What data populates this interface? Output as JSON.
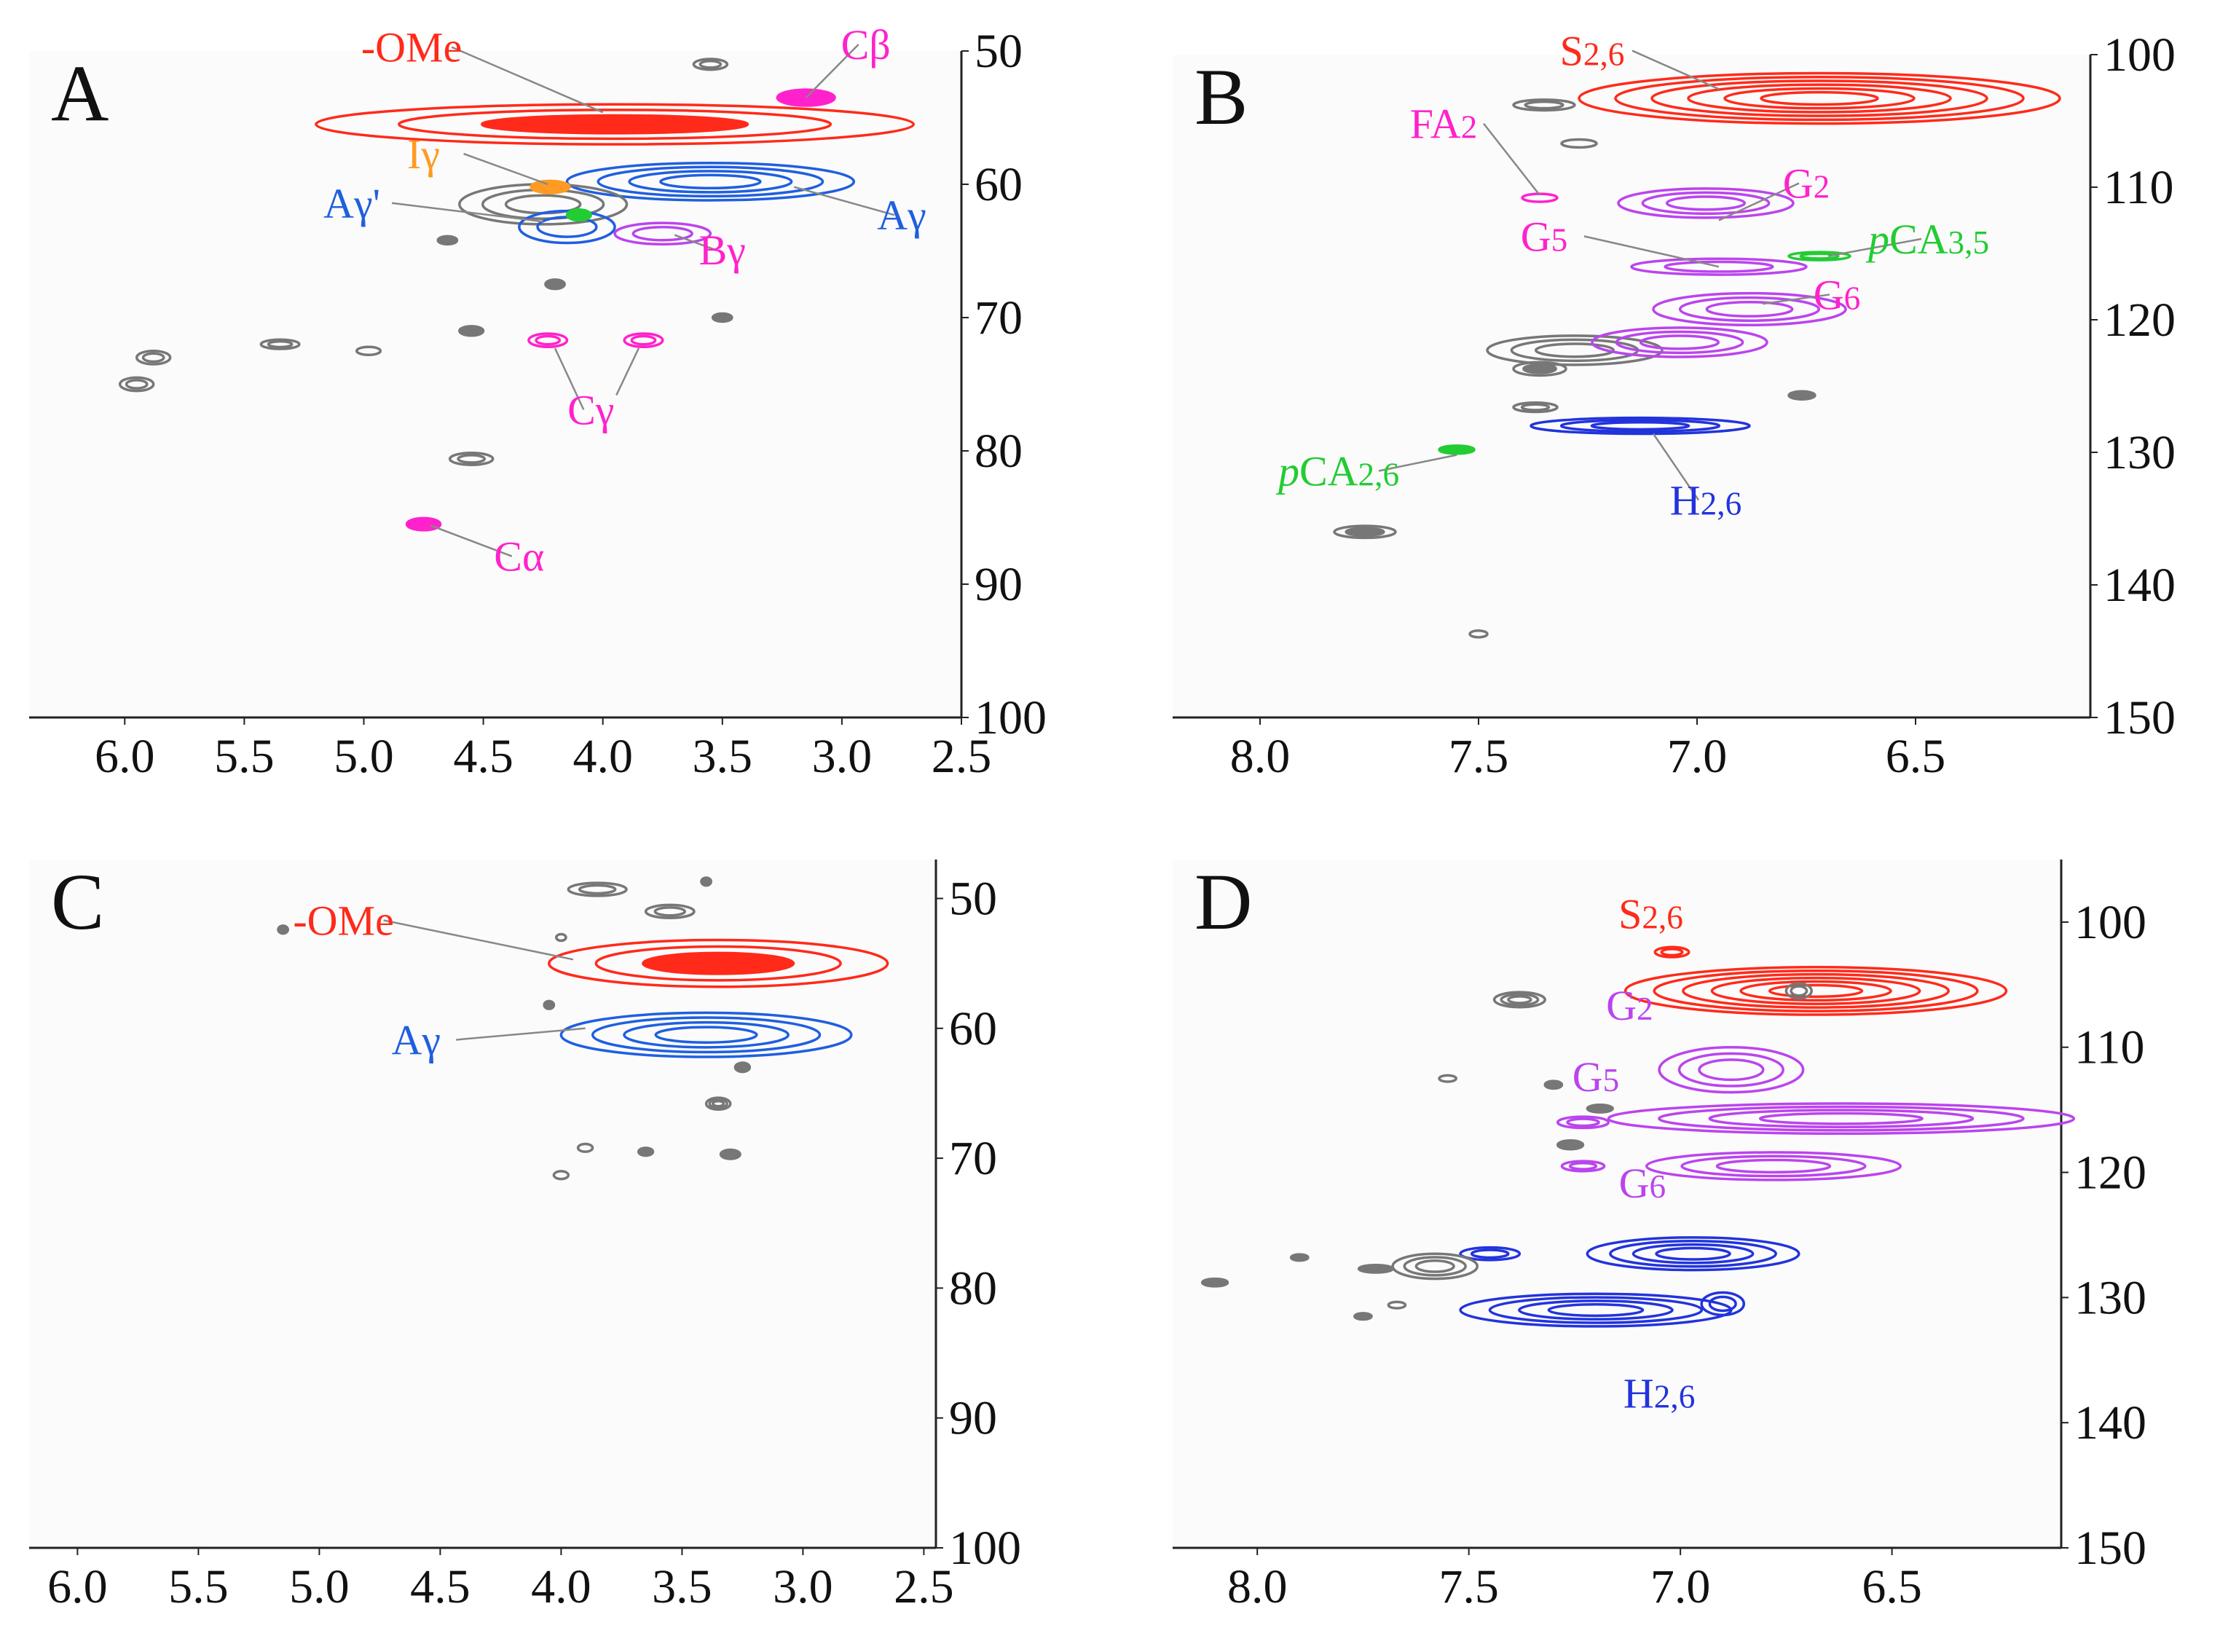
{
  "chart_data": [
    {
      "type": "scatter",
      "panel_label": "A",
      "xlim": [
        6.4,
        2.5
      ],
      "ylim": [
        50,
        100
      ],
      "x_ticks": [
        "6.0",
        "5.5",
        "5.0",
        "4.5",
        "4.0",
        "3.5",
        "3.0",
        "2.5"
      ],
      "y_ticks": [
        "50",
        "60",
        "70",
        "80",
        "90",
        "100"
      ],
      "colors": {
        "red": "#ff2a1a",
        "blue": "#1f5fe0",
        "magenta": "#ff22cc",
        "purple": "#bb44ee",
        "orange": "#ff9a22",
        "green": "#22cc33",
        "gray": "#777777"
      },
      "peaks": [
        {
          "x": 3.95,
          "y": 55.5,
          "rx": 1.25,
          "ry": 1.5,
          "color": "red",
          "rings": 3,
          "fill": true
        },
        {
          "x": 3.15,
          "y": 53.5,
          "rx": 0.12,
          "ry": 0.6,
          "color": "magenta",
          "rings": 1,
          "fill": true
        },
        {
          "x": 3.55,
          "y": 59.8,
          "rx": 0.6,
          "ry": 1.4,
          "color": "blue",
          "rings": 4
        },
        {
          "x": 4.25,
          "y": 61.5,
          "rx": 0.35,
          "ry": 1.5,
          "color": "gray",
          "rings": 3
        },
        {
          "x": 4.22,
          "y": 60.2,
          "rx": 0.08,
          "ry": 0.45,
          "color": "orange",
          "rings": 1,
          "fill": true
        },
        {
          "x": 4.15,
          "y": 63.2,
          "rx": 0.2,
          "ry": 1.2,
          "color": "blue",
          "rings": 2
        },
        {
          "x": 3.75,
          "y": 63.7,
          "rx": 0.2,
          "ry": 0.8,
          "color": "purple",
          "rings": 2
        },
        {
          "x": 4.1,
          "y": 62.3,
          "rx": 0.05,
          "ry": 0.4,
          "color": "green",
          "rings": 1,
          "fill": true
        },
        {
          "x": 3.55,
          "y": 51.0,
          "rx": 0.07,
          "ry": 0.4,
          "color": "gray",
          "rings": 2
        },
        {
          "x": 4.65,
          "y": 64.2,
          "rx": 0.04,
          "ry": 0.3,
          "color": "gray",
          "rings": 1,
          "fill": true
        },
        {
          "x": 4.2,
          "y": 67.5,
          "rx": 0.04,
          "ry": 0.35,
          "color": "gray",
          "rings": 1,
          "fill": true
        },
        {
          "x": 4.55,
          "y": 71.0,
          "rx": 0.05,
          "ry": 0.35,
          "color": "gray",
          "rings": 1,
          "fill": true
        },
        {
          "x": 3.5,
          "y": 70.0,
          "rx": 0.04,
          "ry": 0.3,
          "color": "gray",
          "rings": 1,
          "fill": true
        },
        {
          "x": 5.35,
          "y": 72.0,
          "rx": 0.08,
          "ry": 0.35,
          "color": "gray",
          "rings": 2
        },
        {
          "x": 4.98,
          "y": 72.5,
          "rx": 0.05,
          "ry": 0.3,
          "color": "gray",
          "rings": 1
        },
        {
          "x": 5.88,
          "y": 73.0,
          "rx": 0.07,
          "ry": 0.5,
          "color": "gray",
          "rings": 2
        },
        {
          "x": 5.95,
          "y": 75.0,
          "rx": 0.07,
          "ry": 0.5,
          "color": "gray",
          "rings": 2
        },
        {
          "x": 4.23,
          "y": 71.7,
          "rx": 0.08,
          "ry": 0.5,
          "color": "magenta",
          "rings": 2
        },
        {
          "x": 3.83,
          "y": 71.7,
          "rx": 0.08,
          "ry": 0.5,
          "color": "magenta",
          "rings": 2
        },
        {
          "x": 4.55,
          "y": 80.6,
          "rx": 0.09,
          "ry": 0.45,
          "color": "gray",
          "rings": 2
        },
        {
          "x": 4.75,
          "y": 85.5,
          "rx": 0.07,
          "ry": 0.45,
          "color": "magenta",
          "rings": 1,
          "fill": true
        }
      ],
      "labels": [
        {
          "text": "-OMe",
          "color": "red",
          "x": 4.8,
          "y": 50.8,
          "tx": 4.0,
          "ty": 54.6
        },
        {
          "text": "Cβ",
          "color": "magenta",
          "x": 2.9,
          "y": 50.6,
          "tx": 3.15,
          "ty": 53.5
        },
        {
          "text": "Iγ",
          "color": "orange",
          "x": 4.75,
          "y": 58.8,
          "tx": 4.23,
          "ty": 60.0
        },
        {
          "text": "Aγ'",
          "color": "blue",
          "x": 5.05,
          "y": 62.5,
          "tx": 4.25,
          "ty": 62.8
        },
        {
          "text": "Aγ",
          "color": "blue",
          "x": 2.75,
          "y": 63.4,
          "tx": 3.2,
          "ty": 60.2
        },
        {
          "text": "Bγ",
          "color": "magenta",
          "x": 3.5,
          "y": 66.0,
          "tx": 3.7,
          "ty": 63.8
        },
        {
          "text": "Cγ",
          "color": "magenta",
          "x": 4.05,
          "y": 78.0,
          "tx": 4.2,
          "ty": 72.3,
          "tx2": 3.85,
          "ty2": 72.3
        },
        {
          "text": "Cα",
          "color": "magenta",
          "x": 4.35,
          "y": 89.0,
          "tx": 4.72,
          "ty": 85.6
        }
      ]
    },
    {
      "type": "scatter",
      "panel_label": "B",
      "xlim": [
        8.2,
        6.1
      ],
      "ylim": [
        100,
        150
      ],
      "x_ticks": [
        "8.0",
        "7.5",
        "7.0",
        "6.5"
      ],
      "y_ticks": [
        "100",
        "110",
        "120",
        "130",
        "140",
        "150"
      ],
      "colors": {
        "red": "#ff2a1a",
        "blue": "#2233dd",
        "magenta": "#ff22cc",
        "purple": "#bb44ee",
        "green": "#22cc33",
        "gray": "#777777"
      },
      "peaks": [
        {
          "x": 6.72,
          "y": 103.3,
          "rx": 0.55,
          "ry": 1.9,
          "color": "red",
          "rings": 6
        },
        {
          "x": 7.35,
          "y": 103.8,
          "rx": 0.07,
          "ry": 0.4,
          "color": "gray",
          "rings": 2
        },
        {
          "x": 7.27,
          "y": 106.7,
          "rx": 0.04,
          "ry": 0.3,
          "color": "gray",
          "rings": 1
        },
        {
          "x": 7.36,
          "y": 110.8,
          "rx": 0.04,
          "ry": 0.3,
          "color": "magenta",
          "rings": 1
        },
        {
          "x": 6.98,
          "y": 111.2,
          "rx": 0.2,
          "ry": 1.1,
          "color": "purple",
          "rings": 3
        },
        {
          "x": 6.95,
          "y": 116.0,
          "rx": 0.2,
          "ry": 0.6,
          "color": "purple",
          "rings": 2
        },
        {
          "x": 6.72,
          "y": 115.2,
          "rx": 0.07,
          "ry": 0.3,
          "color": "green",
          "rings": 2
        },
        {
          "x": 6.88,
          "y": 119.2,
          "rx": 0.22,
          "ry": 1.2,
          "color": "purple",
          "rings": 3
        },
        {
          "x": 7.28,
          "y": 122.3,
          "rx": 0.2,
          "ry": 1.1,
          "color": "gray",
          "rings": 3
        },
        {
          "x": 7.04,
          "y": 121.7,
          "rx": 0.2,
          "ry": 1.1,
          "color": "purple",
          "rings": 3
        },
        {
          "x": 7.36,
          "y": 123.7,
          "rx": 0.06,
          "ry": 0.5,
          "color": "gray",
          "rings": 2,
          "fill": true
        },
        {
          "x": 6.76,
          "y": 125.7,
          "rx": 0.03,
          "ry": 0.3,
          "color": "gray",
          "rings": 1,
          "fill": true
        },
        {
          "x": 7.37,
          "y": 126.6,
          "rx": 0.05,
          "ry": 0.35,
          "color": "gray",
          "rings": 2
        },
        {
          "x": 7.13,
          "y": 128.0,
          "rx": 0.25,
          "ry": 0.6,
          "color": "blue",
          "rings": 3
        },
        {
          "x": 7.55,
          "y": 129.8,
          "rx": 0.04,
          "ry": 0.3,
          "color": "green",
          "rings": 1,
          "fill": true
        },
        {
          "x": 7.76,
          "y": 136.0,
          "rx": 0.07,
          "ry": 0.45,
          "color": "gray",
          "rings": 2,
          "fill": true
        },
        {
          "x": 7.5,
          "y": 143.7,
          "rx": 0.02,
          "ry": 0.25,
          "color": "gray",
          "rings": 1
        }
      ],
      "labels": [
        {
          "text": "S2,6",
          "color": "red",
          "x": 7.24,
          "y": 100.8,
          "tx": 6.95,
          "ty": 102.6
        },
        {
          "text": "FA2",
          "color": "magenta",
          "x": 7.58,
          "y": 106.3,
          "tx": 7.36,
          "ty": 110.6
        },
        {
          "text": "G2",
          "color": "magenta",
          "x": 6.75,
          "y": 110.8,
          "tx": 6.95,
          "ty": 112.5
        },
        {
          "text": "G5",
          "color": "magenta",
          "x": 7.35,
          "y": 114.8,
          "tx": 6.95,
          "ty": 116.0
        },
        {
          "text": "pCA3,5",
          "color": "green",
          "x": 6.47,
          "y": 115.0,
          "tx": 6.7,
          "ty": 115.2
        },
        {
          "text": "G6",
          "color": "magenta",
          "x": 6.68,
          "y": 119.2,
          "tx": 6.85,
          "ty": 118.8
        },
        {
          "text": "pCA2,6",
          "color": "green",
          "x": 7.82,
          "y": 132.5,
          "tx": 7.55,
          "ty": 130.2
        },
        {
          "text": "H2,6",
          "color": "blue",
          "x": 6.98,
          "y": 134.7,
          "tx": 7.1,
          "ty": 128.6
        }
      ]
    },
    {
      "type": "scatter",
      "panel_label": "C",
      "xlim": [
        6.2,
        2.45
      ],
      "ylim": [
        47,
        100
      ],
      "x_ticks": [
        "6.0",
        "5.5",
        "5.0",
        "4.5",
        "4.0",
        "3.5",
        "3.0",
        "2.5"
      ],
      "y_ticks": [
        "50",
        "60",
        "70",
        "80",
        "90",
        "100"
      ],
      "colors": {
        "red": "#ff2a1a",
        "blue": "#1f5fe0",
        "gray": "#777777"
      },
      "peaks": [
        {
          "x": 3.35,
          "y": 55.0,
          "rx": 0.7,
          "ry": 1.8,
          "color": "red",
          "rings": 3,
          "fill": true
        },
        {
          "x": 3.4,
          "y": 60.5,
          "rx": 0.6,
          "ry": 1.7,
          "color": "blue",
          "rings": 4
        },
        {
          "x": 3.85,
          "y": 49.3,
          "rx": 0.12,
          "ry": 0.5,
          "color": "gray",
          "rings": 2
        },
        {
          "x": 3.55,
          "y": 51.0,
          "rx": 0.1,
          "ry": 0.5,
          "color": "gray",
          "rings": 2
        },
        {
          "x": 3.4,
          "y": 48.7,
          "rx": 0.02,
          "ry": 0.3,
          "color": "gray",
          "rings": 1,
          "fill": true
        },
        {
          "x": 5.15,
          "y": 52.4,
          "rx": 0.02,
          "ry": 0.3,
          "color": "gray",
          "rings": 1,
          "fill": true
        },
        {
          "x": 4.0,
          "y": 53.0,
          "rx": 0.02,
          "ry": 0.25,
          "color": "gray",
          "rings": 1
        },
        {
          "x": 4.05,
          "y": 58.2,
          "rx": 0.02,
          "ry": 0.3,
          "color": "gray",
          "rings": 1,
          "fill": true
        },
        {
          "x": 3.25,
          "y": 63.0,
          "rx": 0.03,
          "ry": 0.35,
          "color": "gray",
          "rings": 1,
          "fill": true
        },
        {
          "x": 3.35,
          "y": 65.8,
          "rx": 0.05,
          "ry": 0.45,
          "color": "gray",
          "rings": 3
        },
        {
          "x": 3.65,
          "y": 69.5,
          "rx": 0.03,
          "ry": 0.3,
          "color": "gray",
          "rings": 1,
          "fill": true
        },
        {
          "x": 3.3,
          "y": 69.7,
          "rx": 0.04,
          "ry": 0.35,
          "color": "gray",
          "rings": 1,
          "fill": true
        },
        {
          "x": 3.9,
          "y": 69.2,
          "rx": 0.03,
          "ry": 0.3,
          "color": "gray",
          "rings": 1
        },
        {
          "x": 4.0,
          "y": 71.3,
          "rx": 0.03,
          "ry": 0.3,
          "color": "gray",
          "rings": 1
        }
      ],
      "labels": [
        {
          "text": "-OMe",
          "color": "red",
          "x": 4.9,
          "y": 52.8,
          "tx": 3.95,
          "ty": 54.7
        },
        {
          "text": "Aγ",
          "color": "blue",
          "x": 4.6,
          "y": 62.0,
          "tx": 3.9,
          "ty": 60.0
        }
      ]
    },
    {
      "type": "scatter",
      "panel_label": "D",
      "xlim": [
        8.2,
        6.1
      ],
      "ylim": [
        95,
        150
      ],
      "x_ticks": [
        "8.0",
        "7.5",
        "7.0",
        "6.5"
      ],
      "y_ticks": [
        "100",
        "110",
        "120",
        "130",
        "140",
        "150"
      ],
      "colors": {
        "red": "#ff2a1a",
        "blue": "#2233dd",
        "purple": "#bb44ee",
        "gray": "#777777"
      },
      "peaks": [
        {
          "x": 6.68,
          "y": 105.5,
          "rx": 0.45,
          "ry": 1.9,
          "color": "red",
          "rings": 6
        },
        {
          "x": 7.02,
          "y": 102.4,
          "rx": 0.04,
          "ry": 0.4,
          "color": "red",
          "rings": 2
        },
        {
          "x": 6.72,
          "y": 105.5,
          "rx": 0.03,
          "ry": 0.6,
          "color": "gray",
          "rings": 2
        },
        {
          "x": 6.88,
          "y": 111.8,
          "rx": 0.17,
          "ry": 1.8,
          "color": "purple",
          "rings": 3
        },
        {
          "x": 6.62,
          "y": 115.7,
          "rx": 0.55,
          "ry": 1.2,
          "color": "purple",
          "rings": 4
        },
        {
          "x": 6.78,
          "y": 119.5,
          "rx": 0.3,
          "ry": 1.1,
          "color": "purple",
          "rings": 3
        },
        {
          "x": 7.23,
          "y": 116.0,
          "rx": 0.06,
          "ry": 0.45,
          "color": "purple",
          "rings": 2
        },
        {
          "x": 7.23,
          "y": 119.5,
          "rx": 0.05,
          "ry": 0.4,
          "color": "purple",
          "rings": 2
        },
        {
          "x": 7.38,
          "y": 106.2,
          "rx": 0.06,
          "ry": 0.6,
          "color": "gray",
          "rings": 3
        },
        {
          "x": 7.3,
          "y": 113.0,
          "rx": 0.02,
          "ry": 0.3,
          "color": "gray",
          "rings": 1,
          "fill": true
        },
        {
          "x": 7.19,
          "y": 114.9,
          "rx": 0.03,
          "ry": 0.3,
          "color": "gray",
          "rings": 1,
          "fill": true
        },
        {
          "x": 7.26,
          "y": 117.8,
          "rx": 0.03,
          "ry": 0.35,
          "color": "gray",
          "rings": 1,
          "fill": true
        },
        {
          "x": 7.55,
          "y": 112.5,
          "rx": 0.02,
          "ry": 0.25,
          "color": "gray",
          "rings": 1
        },
        {
          "x": 6.97,
          "y": 126.5,
          "rx": 0.25,
          "ry": 1.3,
          "color": "blue",
          "rings": 4
        },
        {
          "x": 7.2,
          "y": 131.0,
          "rx": 0.32,
          "ry": 1.3,
          "color": "blue",
          "rings": 4
        },
        {
          "x": 6.9,
          "y": 130.5,
          "rx": 0.05,
          "ry": 0.9,
          "color": "blue",
          "rings": 2
        },
        {
          "x": 7.45,
          "y": 126.5,
          "rx": 0.07,
          "ry": 0.5,
          "color": "blue",
          "rings": 2
        },
        {
          "x": 7.58,
          "y": 127.5,
          "rx": 0.1,
          "ry": 1.0,
          "color": "gray",
          "rings": 3
        },
        {
          "x": 7.72,
          "y": 127.7,
          "rx": 0.04,
          "ry": 0.3,
          "color": "gray",
          "rings": 1,
          "fill": true
        },
        {
          "x": 8.1,
          "y": 128.8,
          "rx": 0.03,
          "ry": 0.3,
          "color": "gray",
          "rings": 1,
          "fill": true
        },
        {
          "x": 7.9,
          "y": 126.8,
          "rx": 0.02,
          "ry": 0.25,
          "color": "gray",
          "rings": 1,
          "fill": true
        },
        {
          "x": 7.75,
          "y": 131.5,
          "rx": 0.02,
          "ry": 0.25,
          "color": "gray",
          "rings": 1,
          "fill": true
        },
        {
          "x": 7.67,
          "y": 130.6,
          "rx": 0.02,
          "ry": 0.25,
          "color": "gray",
          "rings": 1
        }
      ],
      "labels": [
        {
          "text": "S2,6",
          "color": "red",
          "x": 7.07,
          "y": 100.5
        },
        {
          "text": "G2",
          "color": "purple",
          "x": 7.12,
          "y": 107.8
        },
        {
          "text": "G5",
          "color": "purple",
          "x": 7.2,
          "y": 113.5
        },
        {
          "text": "G6",
          "color": "purple",
          "x": 7.09,
          "y": 122.0
        },
        {
          "text": "H2,6",
          "color": "blue",
          "x": 7.05,
          "y": 138.8
        }
      ]
    }
  ]
}
